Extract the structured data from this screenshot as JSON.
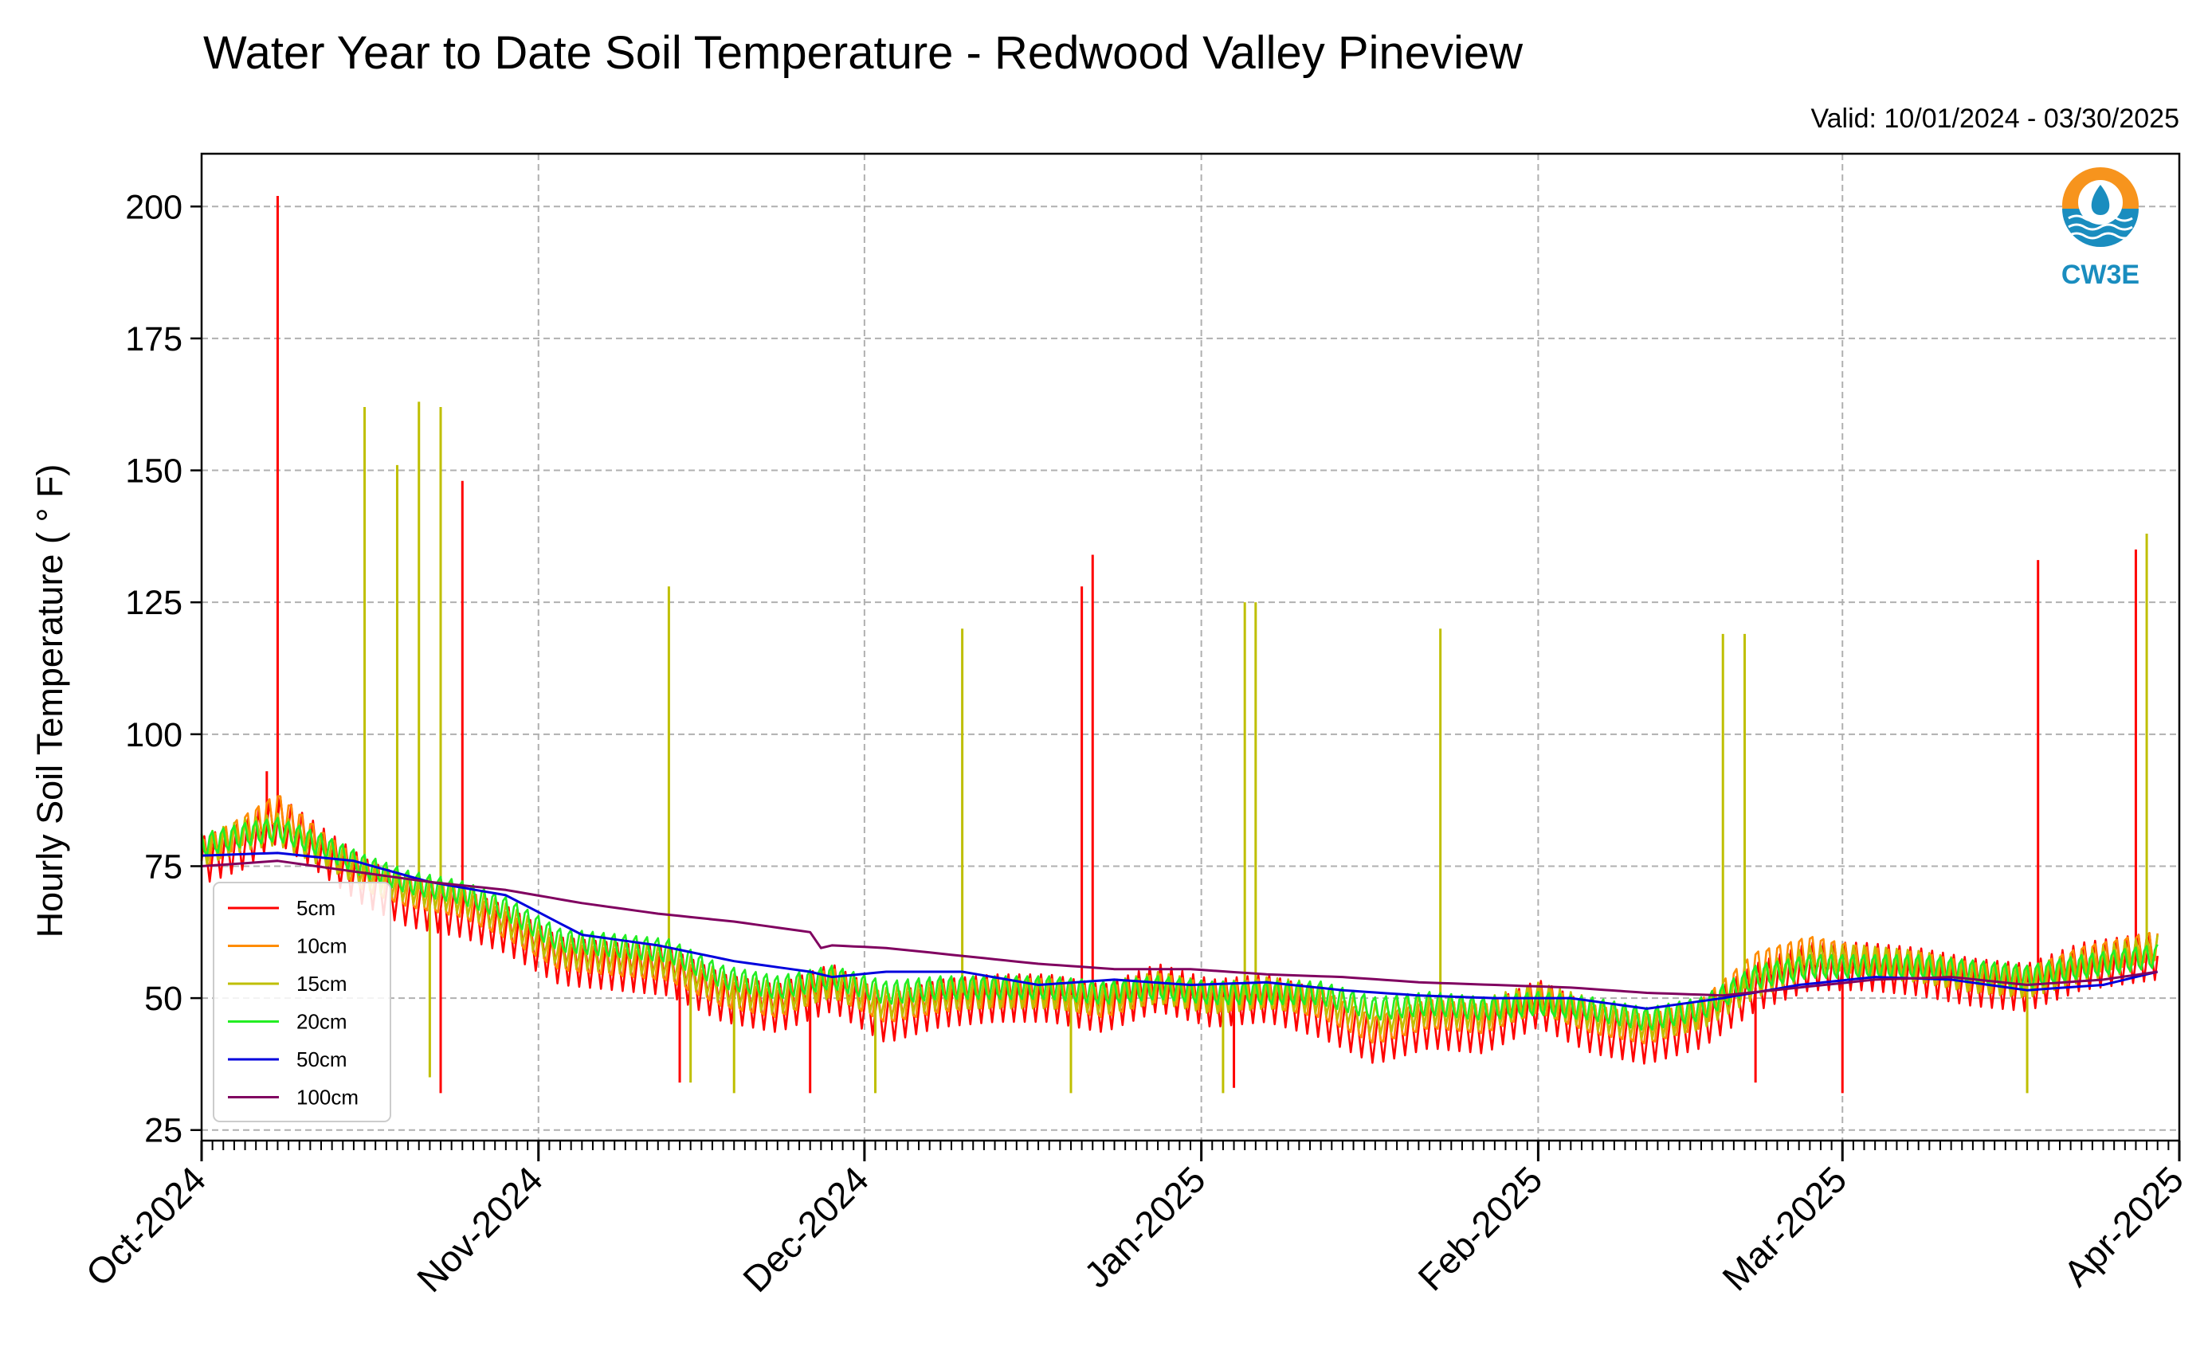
{
  "colors": {
    "5cm": "#ff0000",
    "10cm": "#ff8c00",
    "15cm": "#bfbf00",
    "20cm": "#22ee22",
    "50cm": "#0000dd",
    "100cm": "#800060",
    "grid": "#b0b0b0",
    "logo_orange": "#f7941d",
    "logo_blue": "#1a8dbf"
  },
  "logo": {
    "icon": "cw3e-droplet-logo",
    "text": "CW3E"
  },
  "chart_data": {
    "type": "line",
    "title": "Water Year to Date Soil Temperature - Redwood Valley Pineview",
    "subtitle": "Valid: 10/01/2024 - 03/30/2025",
    "xlabel": "",
    "ylabel": "Hourly Soil Temperature ( ° F)",
    "ylim": [
      23,
      210
    ],
    "yticks": [
      25,
      50,
      75,
      100,
      125,
      150,
      175,
      200
    ],
    "xlim": [
      "2024-10-01",
      "2025-04-01"
    ],
    "xticks": [
      "2024-10-01",
      "2024-11-01",
      "2024-12-01",
      "2025-01-01",
      "2025-02-01",
      "2025-03-01",
      "2025-04-01"
    ],
    "xtick_labels": [
      "Oct-2024",
      "Nov-2024",
      "Dec-2024",
      "Jan-2025",
      "Feb-2025",
      "Mar-2025",
      "Apr-2025"
    ],
    "grid": true,
    "legend_position": "lower-left",
    "series": [
      {
        "name": "5cm",
        "x": [
          "2024-10-01",
          "2024-10-05",
          "2024-10-08",
          "2024-10-12",
          "2024-10-16",
          "2024-10-20",
          "2024-10-25",
          "2024-10-29",
          "2024-11-03",
          "2024-11-08",
          "2024-11-13",
          "2024-11-18",
          "2024-11-23",
          "2024-11-28",
          "2024-12-03",
          "2024-12-08",
          "2024-12-13",
          "2024-12-18",
          "2024-12-23",
          "2024-12-28",
          "2025-01-02",
          "2025-01-07",
          "2025-01-12",
          "2025-01-17",
          "2025-01-22",
          "2025-01-27",
          "2025-02-01",
          "2025-02-06",
          "2025-02-11",
          "2025-02-16",
          "2025-02-21",
          "2025-02-26",
          "2025-03-03",
          "2025-03-08",
          "2025-03-13",
          "2025-03-18",
          "2025-03-23",
          "2025-03-30"
        ],
        "y": [
          76,
          79,
          84,
          78,
          72,
          68,
          66,
          63,
          57,
          56,
          55,
          50,
          48,
          52,
          46,
          49,
          50,
          50,
          48,
          52,
          49,
          50,
          47,
          42,
          45,
          44,
          49,
          44,
          42,
          45,
          52,
          56,
          56,
          55,
          53,
          52,
          56,
          58
        ],
        "spikes": [
          [
            "2024-10-08",
            202
          ],
          [
            "2024-10-07",
            93
          ],
          [
            "2024-10-25",
            148
          ],
          [
            "2024-10-23",
            32
          ],
          [
            "2024-11-14",
            34
          ],
          [
            "2024-11-26",
            32
          ],
          [
            "2024-12-21",
            128
          ],
          [
            "2024-12-22",
            134
          ],
          [
            "2025-01-04",
            33
          ],
          [
            "2025-02-21",
            34
          ],
          [
            "2025-03-01",
            32
          ],
          [
            "2025-03-19",
            133
          ],
          [
            "2025-03-28",
            135
          ]
        ]
      },
      {
        "name": "10cm",
        "x": [
          "2024-10-01",
          "2024-10-05",
          "2024-10-08",
          "2024-10-12",
          "2024-10-16",
          "2024-10-20",
          "2024-10-25",
          "2024-10-29",
          "2024-11-03",
          "2024-11-08",
          "2024-11-13",
          "2024-11-18",
          "2024-11-23",
          "2024-11-28",
          "2024-12-03",
          "2024-12-08",
          "2024-12-13",
          "2024-12-18",
          "2024-12-23",
          "2024-12-28",
          "2025-01-02",
          "2025-01-07",
          "2025-01-12",
          "2025-01-17",
          "2025-01-22",
          "2025-01-27",
          "2025-02-01",
          "2025-02-06",
          "2025-02-11",
          "2025-02-16",
          "2025-02-21",
          "2025-02-26",
          "2025-03-03",
          "2025-03-08",
          "2025-03-13",
          "2025-03-18",
          "2025-03-23",
          "2025-03-30"
        ],
        "y": [
          77,
          82,
          86,
          79,
          73,
          70,
          68,
          64,
          58,
          57,
          56,
          51,
          49,
          53,
          48,
          50,
          51,
          51,
          49,
          52,
          50,
          51,
          49,
          44,
          47,
          46,
          50,
          46,
          44,
          47,
          56,
          59,
          57,
          56,
          54,
          53,
          57,
          60
        ],
        "spikes": []
      },
      {
        "name": "15cm",
        "x": [
          "2024-10-01",
          "2024-10-05",
          "2024-10-08",
          "2024-10-12",
          "2024-10-16",
          "2024-10-20",
          "2024-10-25",
          "2024-10-29",
          "2024-11-03",
          "2024-11-08",
          "2024-11-13",
          "2024-11-18",
          "2024-11-23",
          "2024-11-28",
          "2024-12-03",
          "2024-12-08",
          "2024-12-13",
          "2024-12-18",
          "2024-12-23",
          "2024-12-28",
          "2025-01-02",
          "2025-01-07",
          "2025-01-12",
          "2025-01-17",
          "2025-01-22",
          "2025-01-27",
          "2025-02-01",
          "2025-02-06",
          "2025-02-11",
          "2025-02-16",
          "2025-02-21",
          "2025-02-26",
          "2025-03-03",
          "2025-03-08",
          "2025-03-13",
          "2025-03-18",
          "2025-03-23",
          "2025-03-30"
        ],
        "y": [
          78,
          81,
          82,
          78,
          74,
          71,
          69,
          65,
          59,
          58,
          57,
          52,
          50,
          53,
          49,
          51,
          51,
          51,
          50,
          52,
          50,
          51,
          50,
          46,
          48,
          47,
          50,
          47,
          45,
          47,
          53,
          57,
          57,
          56,
          54,
          53,
          56,
          59
        ],
        "spikes": [
          [
            "2024-10-16",
            162
          ],
          [
            "2024-10-19",
            151
          ],
          [
            "2024-10-21",
            163
          ],
          [
            "2024-10-23",
            162
          ],
          [
            "2024-10-22",
            35
          ],
          [
            "2024-11-13",
            128
          ],
          [
            "2024-11-15",
            34
          ],
          [
            "2024-11-19",
            32
          ],
          [
            "2024-12-02",
            32
          ],
          [
            "2024-12-10",
            120
          ],
          [
            "2024-12-20",
            32
          ],
          [
            "2025-01-03",
            32
          ],
          [
            "2025-01-05",
            125
          ],
          [
            "2025-01-06",
            125
          ],
          [
            "2025-01-23",
            120
          ],
          [
            "2025-02-18",
            119
          ],
          [
            "2025-02-20",
            119
          ],
          [
            "2025-03-18",
            32
          ],
          [
            "2025-03-29",
            138
          ]
        ]
      },
      {
        "name": "20cm",
        "x": [
          "2024-10-01",
          "2024-10-05",
          "2024-10-08",
          "2024-10-12",
          "2024-10-16",
          "2024-10-20",
          "2024-10-25",
          "2024-10-29",
          "2024-11-03",
          "2024-11-08",
          "2024-11-13",
          "2024-11-18",
          "2024-11-23",
          "2024-11-28",
          "2024-12-03",
          "2024-12-08",
          "2024-12-13",
          "2024-12-18",
          "2024-12-23",
          "2024-12-28",
          "2025-01-02",
          "2025-01-07",
          "2025-01-12",
          "2025-01-17",
          "2025-01-22",
          "2025-01-27",
          "2025-02-01",
          "2025-02-06",
          "2025-02-11",
          "2025-02-16",
          "2025-02-21",
          "2025-02-26",
          "2025-03-03",
          "2025-03-08",
          "2025-03-13",
          "2025-03-18",
          "2025-03-23",
          "2025-03-30"
        ],
        "y": [
          79,
          81,
          82,
          79,
          75,
          72,
          70,
          67,
          61,
          60,
          59,
          54,
          52,
          54,
          51,
          52,
          52,
          52,
          51,
          52,
          51,
          51,
          51,
          48,
          49,
          48,
          49,
          48,
          46,
          48,
          54,
          56,
          56,
          56,
          55,
          54,
          56,
          58
        ],
        "spikes": []
      },
      {
        "name": "50cm",
        "x": [
          "2024-10-01",
          "2024-10-08",
          "2024-10-15",
          "2024-10-22",
          "2024-10-29",
          "2024-11-05",
          "2024-11-12",
          "2024-11-19",
          "2024-11-26",
          "2024-11-28",
          "2024-12-03",
          "2024-12-10",
          "2024-12-17",
          "2024-12-24",
          "2024-12-31",
          "2025-01-07",
          "2025-01-14",
          "2025-01-21",
          "2025-01-28",
          "2025-02-04",
          "2025-02-11",
          "2025-02-18",
          "2025-02-25",
          "2025-03-04",
          "2025-03-11",
          "2025-03-18",
          "2025-03-25",
          "2025-03-30"
        ],
        "y": [
          77,
          77.5,
          76,
          72,
          69.5,
          62,
          60,
          57,
          55,
          54,
          55,
          55,
          52.5,
          53.5,
          52.5,
          53,
          51.5,
          50.5,
          50,
          50,
          48,
          50,
          52.5,
          54,
          53.5,
          51.5,
          52.5,
          55
        ],
        "spikes": []
      },
      {
        "name": "100cm",
        "x": [
          "2024-10-01",
          "2024-10-08",
          "2024-10-15",
          "2024-10-22",
          "2024-10-29",
          "2024-11-05",
          "2024-11-12",
          "2024-11-19",
          "2024-11-26",
          "2024-11-27",
          "2024-11-28",
          "2024-12-03",
          "2024-12-10",
          "2024-12-17",
          "2024-12-24",
          "2024-12-31",
          "2025-01-07",
          "2025-01-14",
          "2025-01-21",
          "2025-01-28",
          "2025-02-04",
          "2025-02-11",
          "2025-02-18",
          "2025-02-25",
          "2025-03-04",
          "2025-03-11",
          "2025-03-18",
          "2025-03-25",
          "2025-03-30"
        ],
        "y": [
          75,
          76,
          74,
          72,
          70.5,
          68,
          66,
          64.5,
          62.5,
          59.5,
          60,
          59.5,
          58,
          56.5,
          55.5,
          55.5,
          54.5,
          54,
          53,
          52.5,
          52,
          51,
          50.5,
          52,
          53.5,
          54,
          52.5,
          53.5,
          55
        ],
        "spikes": []
      }
    ]
  }
}
